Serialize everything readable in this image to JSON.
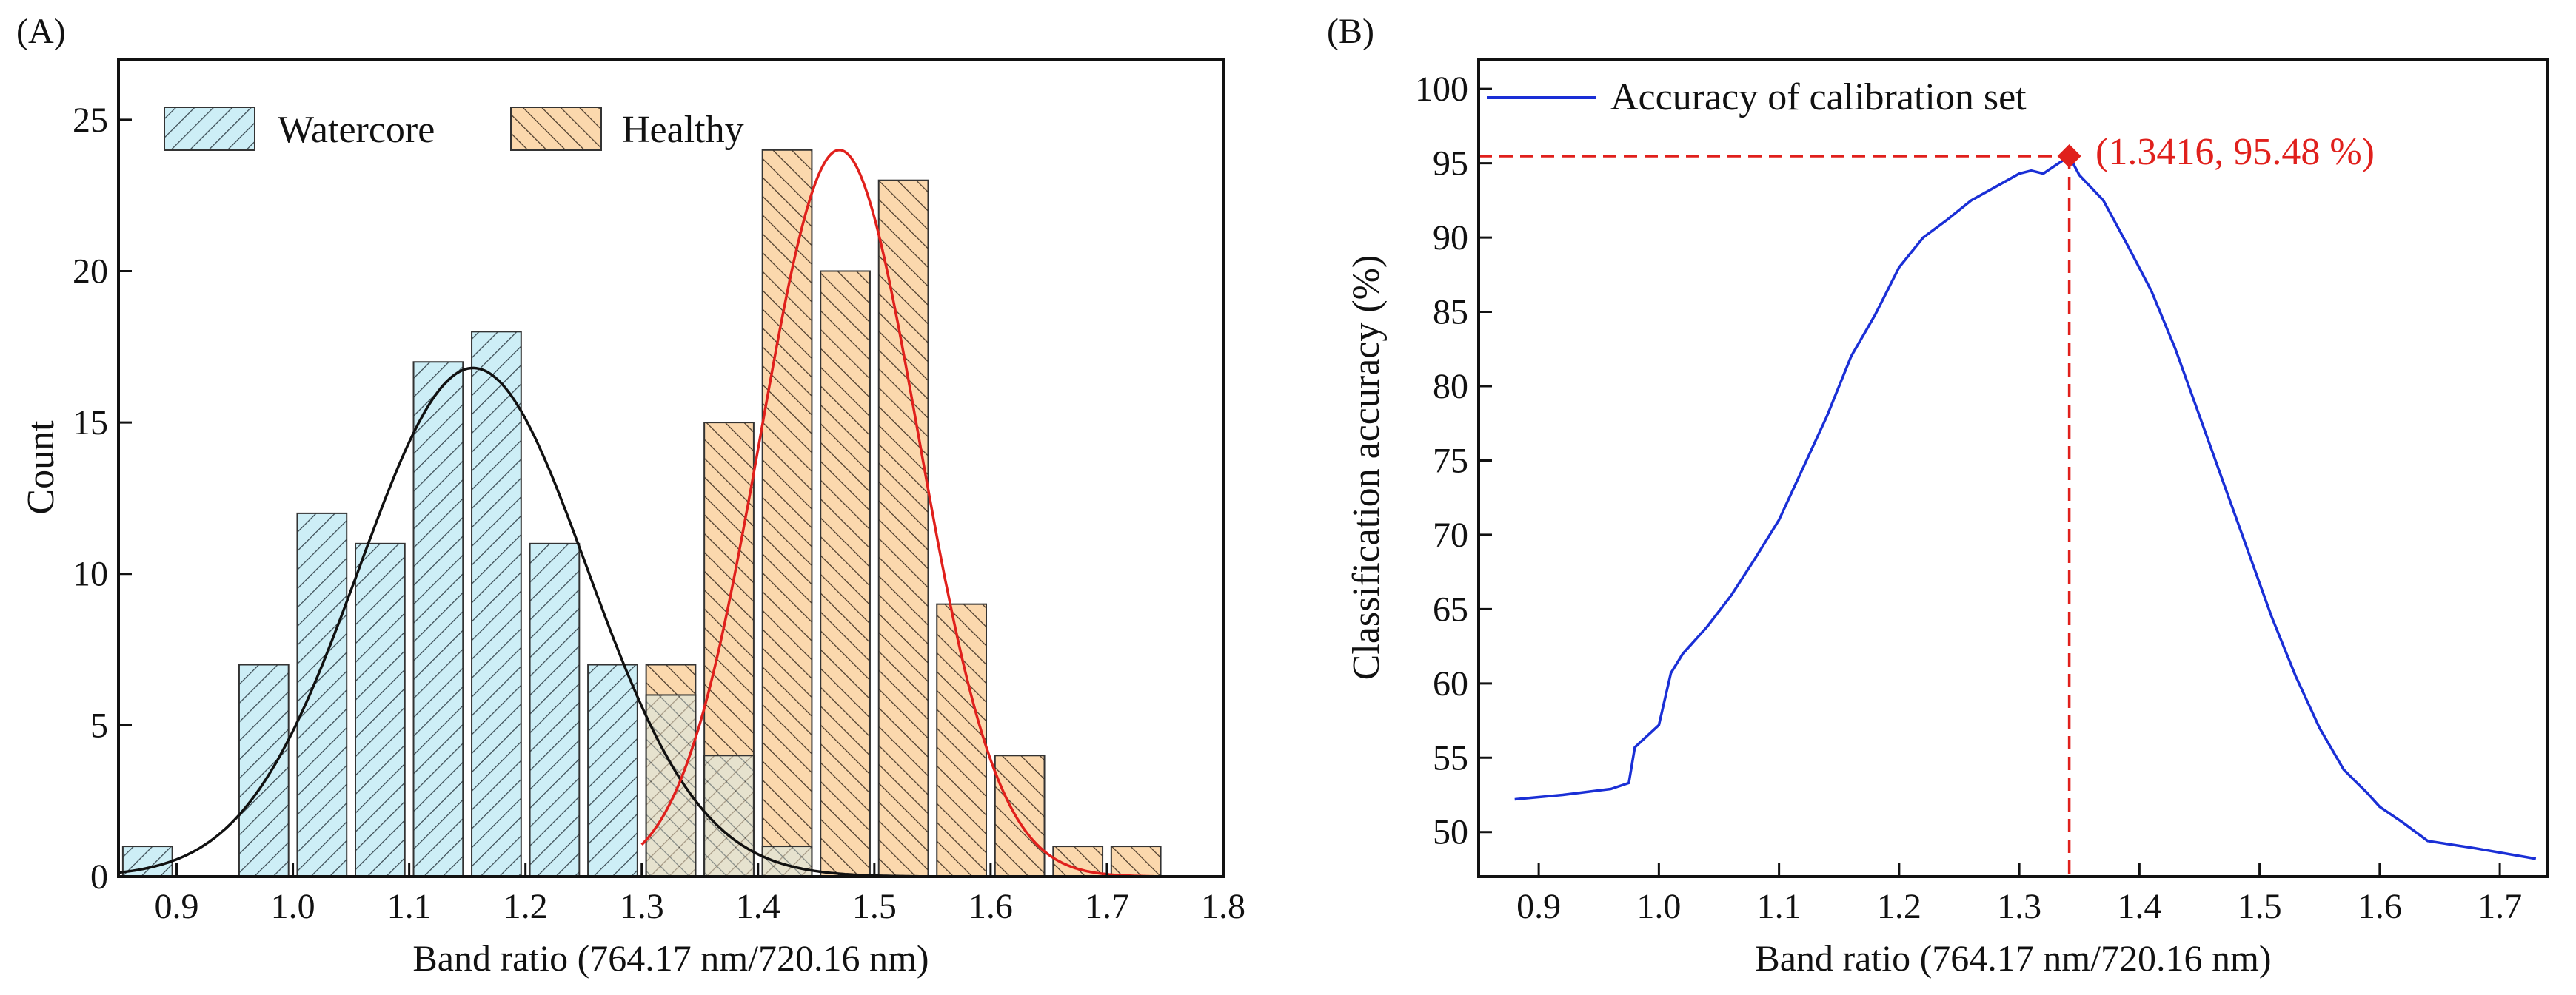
{
  "chart_data": [
    {
      "panel_label": "(A)",
      "type": "bar",
      "title": "",
      "xlabel": "Band ratio (764.17 nm/720.16 nm)",
      "ylabel": "Count",
      "xlim": [
        0.85,
        1.8
      ],
      "ylim": [
        0,
        27
      ],
      "xticks": [
        0.9,
        1.0,
        1.1,
        1.2,
        1.3,
        1.4,
        1.5,
        1.6,
        1.7,
        1.8
      ],
      "xtick_labels": [
        "0.9",
        "1.0",
        "1.1",
        "1.2",
        "1.3",
        "1.4",
        "1.5",
        "1.6",
        "1.7",
        "1.8"
      ],
      "yticks": [
        0,
        5,
        10,
        15,
        20,
        25
      ],
      "ytick_labels": [
        "0",
        "5",
        "10",
        "15",
        "20",
        "25"
      ],
      "legend_position": "top-left",
      "series": [
        {
          "name": "Watercore",
          "color": "#cdeef6",
          "hatch": "/",
          "x": [
            0.875,
            0.975,
            1.025,
            1.075,
            1.125,
            1.175,
            1.225,
            1.275,
            1.325,
            1.375,
            1.425
          ],
          "values": [
            1,
            7,
            12,
            11,
            17,
            18,
            11,
            7,
            6,
            4,
            1
          ]
        },
        {
          "name": "Healthy",
          "color": "#fbd8ad",
          "hatch": "\\",
          "x": [
            1.325,
            1.375,
            1.425,
            1.475,
            1.525,
            1.575,
            1.625,
            1.675,
            1.725
          ],
          "values": [
            7,
            15,
            24,
            20,
            23,
            9,
            4,
            1,
            1
          ]
        }
      ],
      "fit_curves": [
        {
          "name": "Watercore normal fit",
          "color": "#111111",
          "mean": 1.155,
          "sd": 0.098,
          "peak": 16.8,
          "x_range": [
            0.85,
            1.56
          ]
        },
        {
          "name": "Healthy normal fit",
          "color": "#e0201c",
          "mean": 1.47,
          "sd": 0.068,
          "peak": 24.0,
          "x_range": [
            1.3,
            1.74
          ]
        }
      ]
    },
    {
      "panel_label": "(B)",
      "type": "line",
      "title": "",
      "xlabel": "Band ratio (764.17 nm/720.16 nm)",
      "ylabel": "Classification accuracy (%)",
      "xlim": [
        0.85,
        1.74
      ],
      "ylim": [
        47,
        102
      ],
      "xticks": [
        0.9,
        1.0,
        1.1,
        1.2,
        1.3,
        1.4,
        1.5,
        1.6,
        1.7
      ],
      "xtick_labels": [
        "0.9",
        "1.0",
        "1.1",
        "1.2",
        "1.3",
        "1.4",
        "1.5",
        "1.6",
        "1.7"
      ],
      "yticks": [
        50,
        55,
        60,
        65,
        70,
        75,
        80,
        85,
        90,
        95,
        100
      ],
      "ytick_labels": [
        "50",
        "55",
        "60",
        "65",
        "70",
        "75",
        "80",
        "85",
        "90",
        "95",
        "100"
      ],
      "legend_position": "top-left",
      "series": [
        {
          "name": "Accuracy of calibration set",
          "color": "#1a2fd6",
          "x": [
            0.88,
            0.92,
            0.96,
            0.975,
            0.98,
            1.0,
            1.01,
            1.02,
            1.04,
            1.06,
            1.08,
            1.1,
            1.12,
            1.14,
            1.16,
            1.18,
            1.2,
            1.22,
            1.24,
            1.26,
            1.28,
            1.3,
            1.31,
            1.32,
            1.3416,
            1.35,
            1.37,
            1.39,
            1.41,
            1.43,
            1.45,
            1.47,
            1.49,
            1.51,
            1.53,
            1.55,
            1.57,
            1.59,
            1.6,
            1.62,
            1.64,
            1.68,
            1.73
          ],
          "values": [
            52.2,
            52.5,
            52.9,
            53.3,
            55.7,
            57.2,
            60.7,
            62.0,
            63.8,
            65.9,
            68.4,
            71.0,
            74.5,
            78.0,
            82.0,
            84.8,
            88.0,
            90.0,
            91.2,
            92.5,
            93.4,
            94.3,
            94.5,
            94.3,
            95.48,
            94.2,
            92.5,
            89.5,
            86.4,
            82.5,
            78.0,
            73.5,
            69.0,
            64.5,
            60.5,
            57.0,
            54.2,
            52.6,
            51.7,
            50.6,
            49.4,
            48.9,
            48.2
          ]
        }
      ],
      "highlight_point": {
        "x": 1.3416,
        "y": 95.48,
        "label": "(1.3416, 95.48 %)",
        "color": "#e0201c"
      }
    }
  ]
}
